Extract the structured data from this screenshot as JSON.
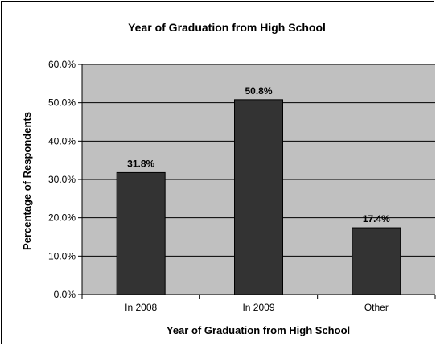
{
  "chart_data": {
    "type": "bar",
    "title": "Year of Graduation from High School",
    "xlabel": "Year of Graduation from High School",
    "ylabel": "Percentage of Respondents",
    "categories": [
      "In 2008",
      "In 2009",
      "Other"
    ],
    "values": [
      31.8,
      50.8,
      17.4
    ],
    "value_labels": [
      "31.8%",
      "50.8%",
      "17.4%"
    ],
    "ylim": [
      0,
      60
    ],
    "yticks": [
      0,
      10,
      20,
      30,
      40,
      50,
      60
    ],
    "ytick_labels": [
      "0.0%",
      "10.0%",
      "20.0%",
      "30.0%",
      "40.0%",
      "50.0%",
      "60.0%"
    ],
    "grid": true,
    "legend": "none",
    "colors": {
      "bar": "#333333",
      "plot_bg": "#c0c0c0",
      "gridline": "#000000"
    }
  }
}
